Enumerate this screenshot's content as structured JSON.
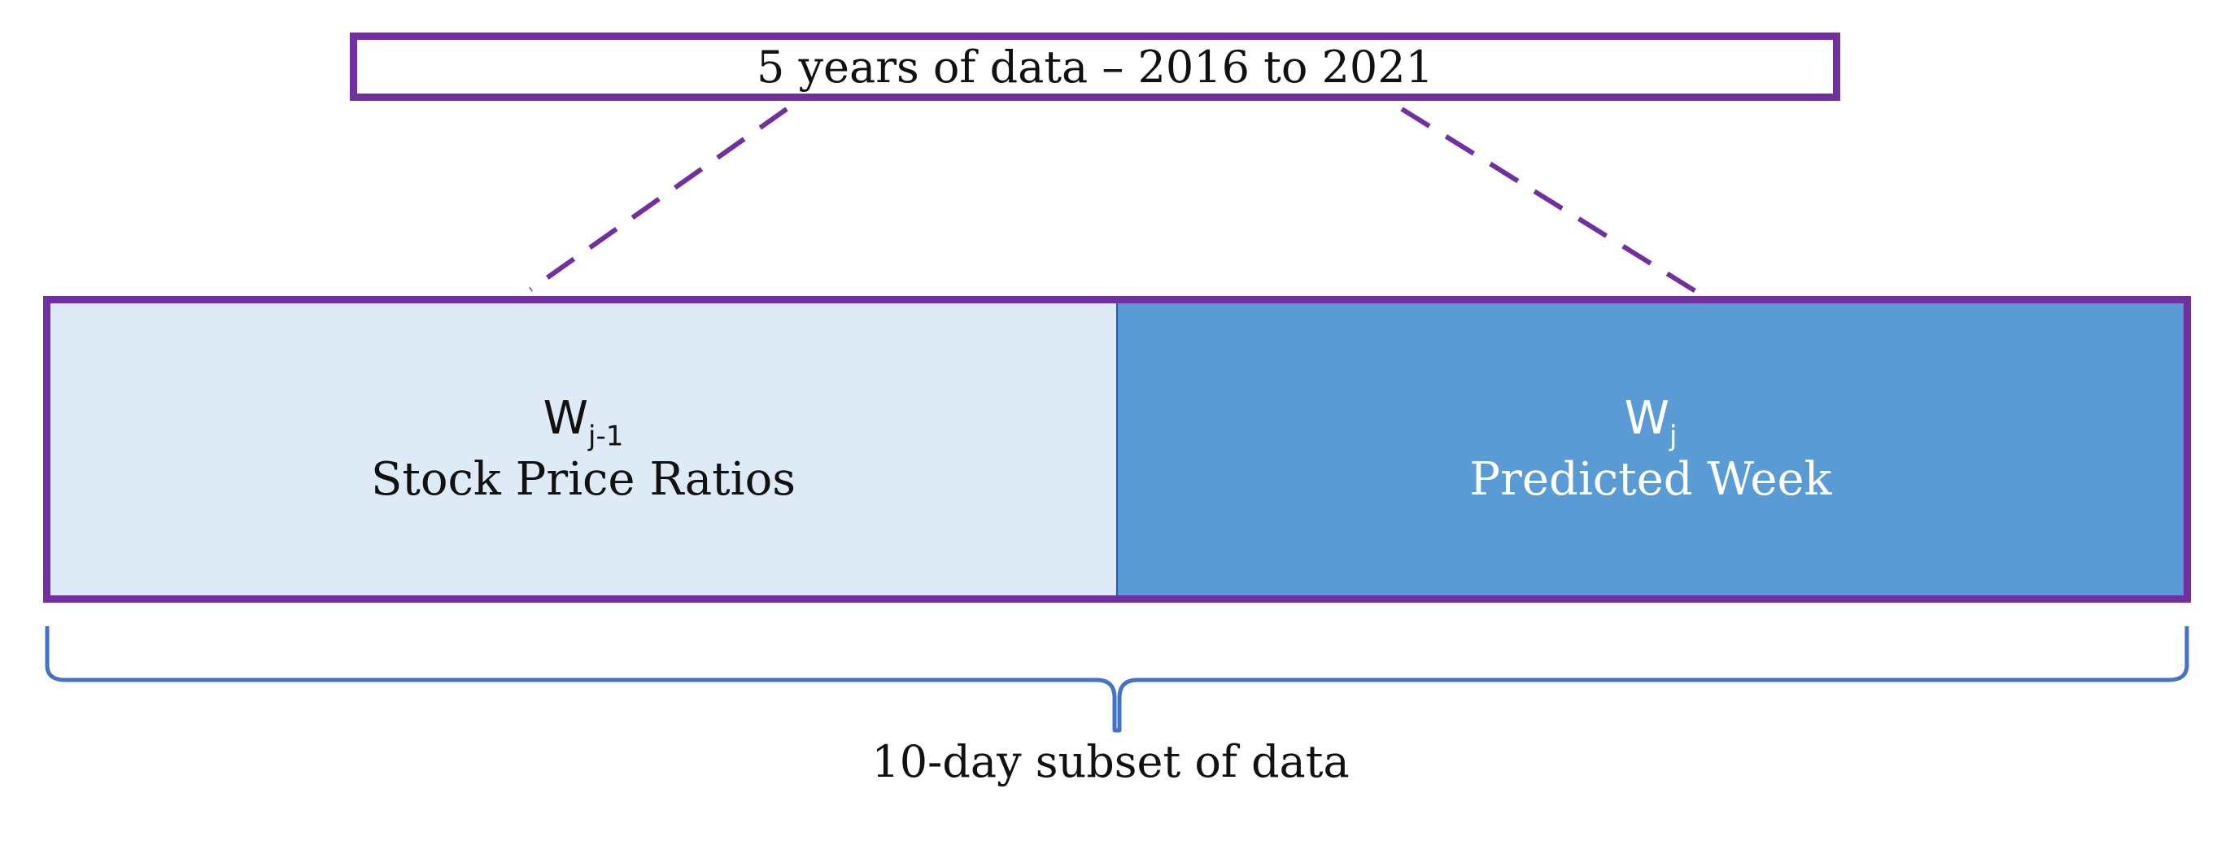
{
  "top_box": {
    "label": "5 years of data – 2016 to 2021"
  },
  "left_segment": {
    "symbol_base": "W",
    "symbol_sub": "j-1",
    "label": "Stock Price Ratios"
  },
  "right_segment": {
    "symbol_base": "W",
    "symbol_sub": "j",
    "label": "Predicted Week"
  },
  "bracket": {
    "label": "10-day subset of data"
  },
  "colors": {
    "outline": "#7030A0",
    "left_fill": "#DEEAF6",
    "right_fill": "#5B9BD5",
    "bracket": "#4472C4"
  }
}
